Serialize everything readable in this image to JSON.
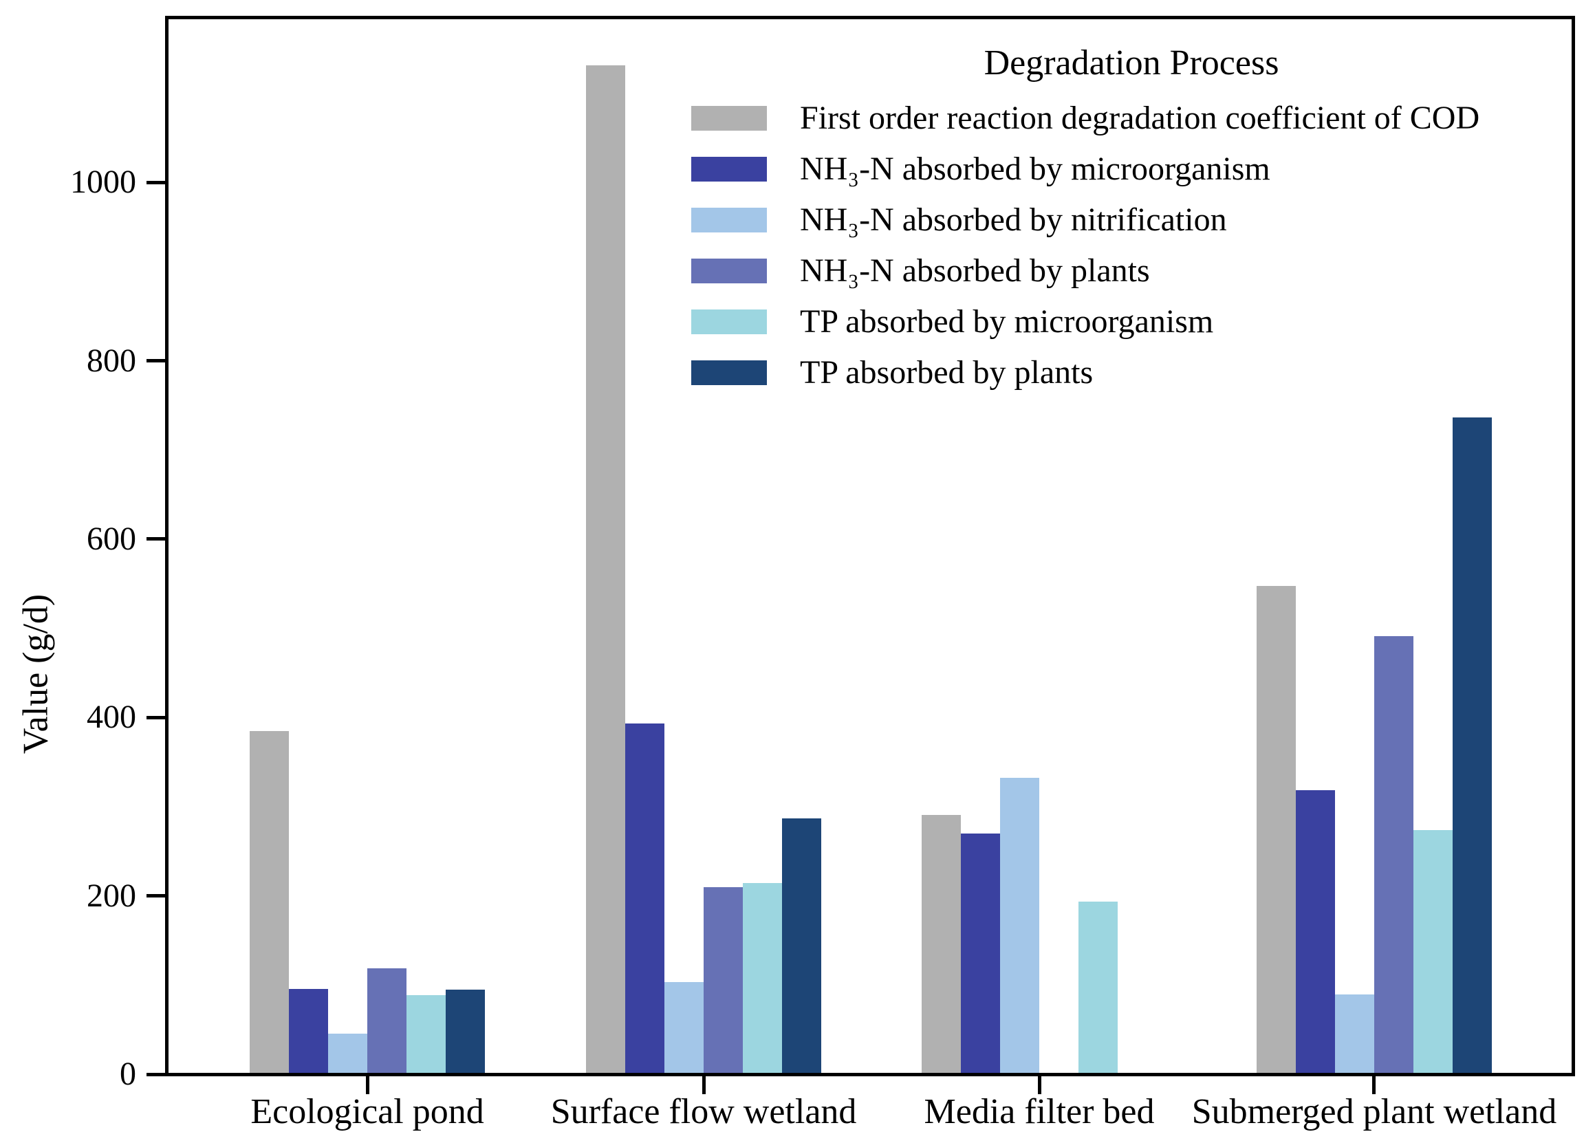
{
  "chart_data": {
    "type": "bar",
    "title": "",
    "xlabel": "",
    "ylabel": "Value (g/d)",
    "legend_title": "Degradation Process",
    "legend_position": "upper right",
    "grid": false,
    "background_color": "#ffffff",
    "axis_color": "#000000",
    "categories": [
      "Ecological pond",
      "Surface flow wetland",
      "Media filter bed",
      "Submerged plant wetland"
    ],
    "yticks": [
      0,
      200,
      400,
      600,
      800,
      1000
    ],
    "ylim": [
      0,
      1183
    ],
    "series": [
      {
        "name": "First order reaction degradation coefficient of COD",
        "color": "#b1b1b1",
        "values": [
          383,
          1130,
          289,
          546
        ]
      },
      {
        "name": "NH₃-N absorbed by microorganism",
        "color": "#3a41a0",
        "values": [
          94,
          392,
          268,
          317
        ]
      },
      {
        "name": "NH₃-N absorbed by nitrification",
        "color": "#a3c6e8",
        "values": [
          44,
          102,
          331,
          88
        ]
      },
      {
        "name": "NH₃-N absorbed by plants",
        "color": "#6671b5",
        "values": [
          117,
          208,
          0,
          490
        ]
      },
      {
        "name": "TP absorbed by microorganism",
        "color": "#9cd6e0",
        "values": [
          87,
          213,
          192,
          272
        ]
      },
      {
        "name": "TP absorbed by plants",
        "color": "#1d4576",
        "values": [
          93,
          285,
          0,
          735
        ]
      }
    ]
  }
}
